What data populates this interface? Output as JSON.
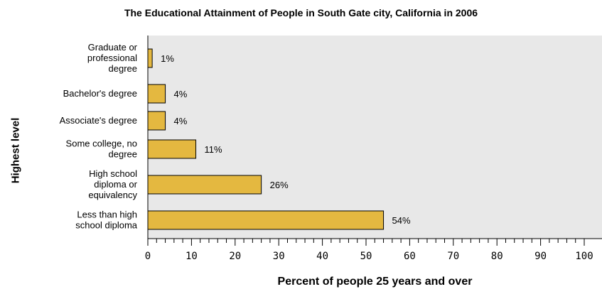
{
  "chart_data": {
    "type": "bar",
    "orientation": "horizontal",
    "title": "The Educational Attainment of People in South Gate city, California in 2006",
    "xlabel": "Percent of people 25 years and over",
    "ylabel": "Highest level",
    "categories": [
      [
        "Graduate or",
        "professional",
        "degree"
      ],
      [
        "Bachelor's degree"
      ],
      [
        "Associate's degree"
      ],
      [
        "Some college, no",
        "degree"
      ],
      [
        "High school",
        "diploma or",
        "equivalency"
      ],
      [
        "Less than high",
        "school diploma"
      ]
    ],
    "values": [
      1,
      4,
      4,
      11,
      26,
      54
    ],
    "value_labels": [
      "1%",
      "4%",
      "4%",
      "11%",
      "26%",
      "54%"
    ],
    "xlim": [
      0,
      100
    ],
    "xticks": [
      "0",
      "10",
      "20",
      "30",
      "40",
      "50",
      "60",
      "70",
      "80",
      "90",
      "100"
    ],
    "bar_color": "#e4b840",
    "plot_background": "#e8e8e8",
    "grid": false
  }
}
